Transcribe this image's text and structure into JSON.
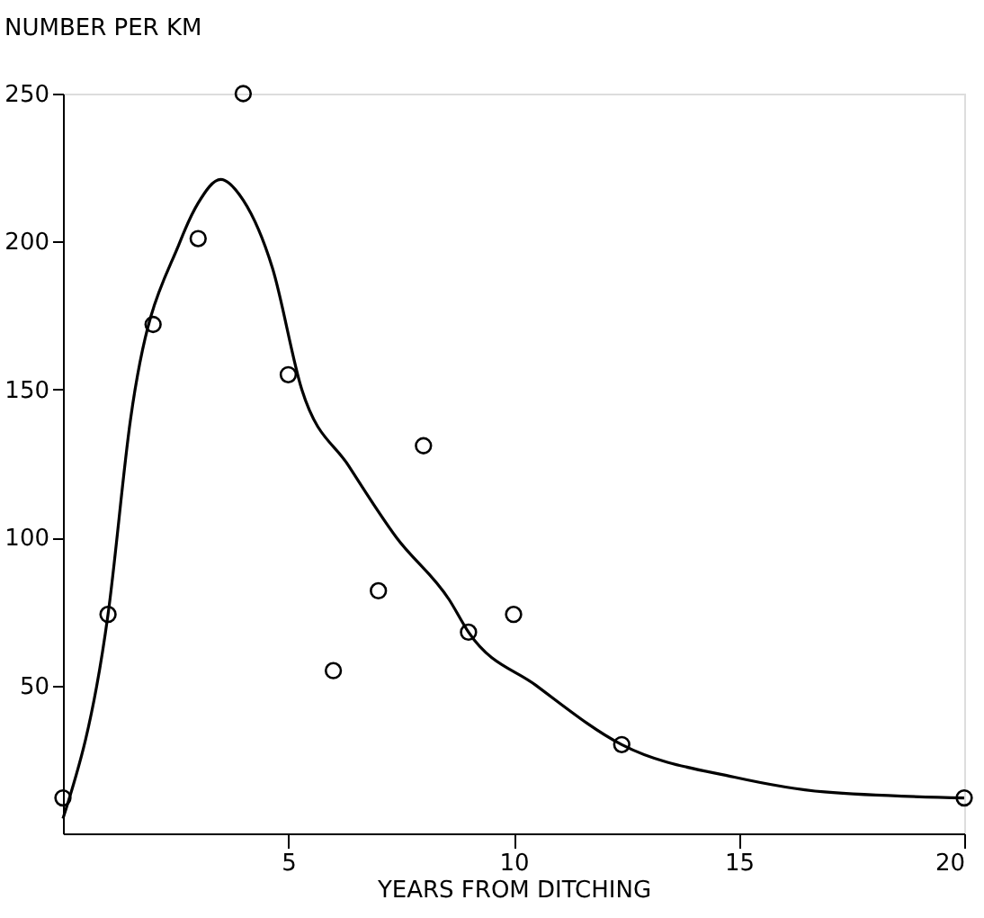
{
  "chart_data": {
    "type": "scatter",
    "xlabel": "YEARS FROM DITCHING",
    "ylabel": "NUMBER PER KM",
    "xlim": [
      0,
      20
    ],
    "ylim": [
      0,
      250
    ],
    "xticks": [
      5,
      10,
      15,
      20
    ],
    "yticks": [
      50,
      100,
      150,
      200,
      250
    ],
    "grid": false,
    "marker": "circle",
    "series": [
      {
        "color": "#000000",
        "x": [
          0,
          1,
          2,
          3,
          4,
          5,
          6,
          7,
          8,
          9,
          10,
          12.4,
          20
        ],
        "values": [
          12,
          74,
          172,
          201,
          250,
          155,
          55,
          82,
          131,
          68,
          74,
          30,
          12
        ]
      },
      {
        "type": "line",
        "color": "#000000",
        "marker": "none",
        "line_style": "solid",
        "x": [
          0,
          1,
          1.5,
          2.6,
          3.0,
          3.5,
          4.0,
          4.65,
          5.3,
          6.35,
          7.4,
          8.57,
          9.0,
          10.5,
          12.4,
          14.9,
          16.9,
          20
        ],
        "values": [
          5,
          74,
          140,
          200,
          213,
          221,
          214,
          191,
          150,
          124,
          100,
          79,
          68,
          50,
          30,
          19,
          14,
          12
        ]
      }
    ]
  }
}
